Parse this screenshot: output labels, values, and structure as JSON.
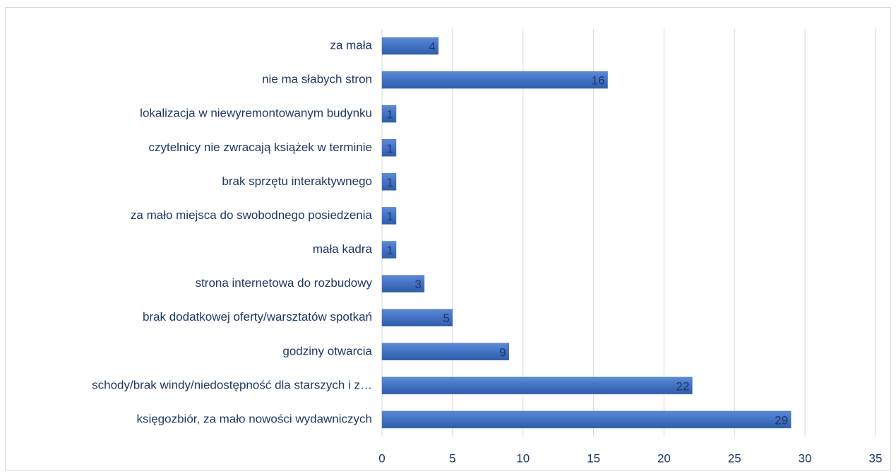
{
  "chart_data": {
    "type": "bar",
    "orientation": "horizontal",
    "categories": [
      "za mała",
      "nie ma słabych stron",
      "lokalizacja w niewyremontowanym budynku",
      "czytelnicy nie zwracają książek w terminie",
      "brak sprzętu interaktywnego",
      "za mało miejsca do swobodnego posiedzenia",
      "mała kadra",
      "strona internetowa do rozbudowy",
      "brak dodatkowej oferty/warsztatów spotkań",
      "godziny otwarcia",
      "schody/brak windy/niedostępność dla starszych i z…",
      "księgozbiór, za mało nowości wydawniczych"
    ],
    "values": [
      4,
      16,
      1,
      1,
      1,
      1,
      1,
      3,
      5,
      9,
      22,
      29
    ],
    "color": "#4472c4",
    "xlim": [
      0,
      35
    ],
    "xticks": [
      0,
      5,
      10,
      15,
      20,
      25,
      30,
      35
    ],
    "grid": true
  }
}
